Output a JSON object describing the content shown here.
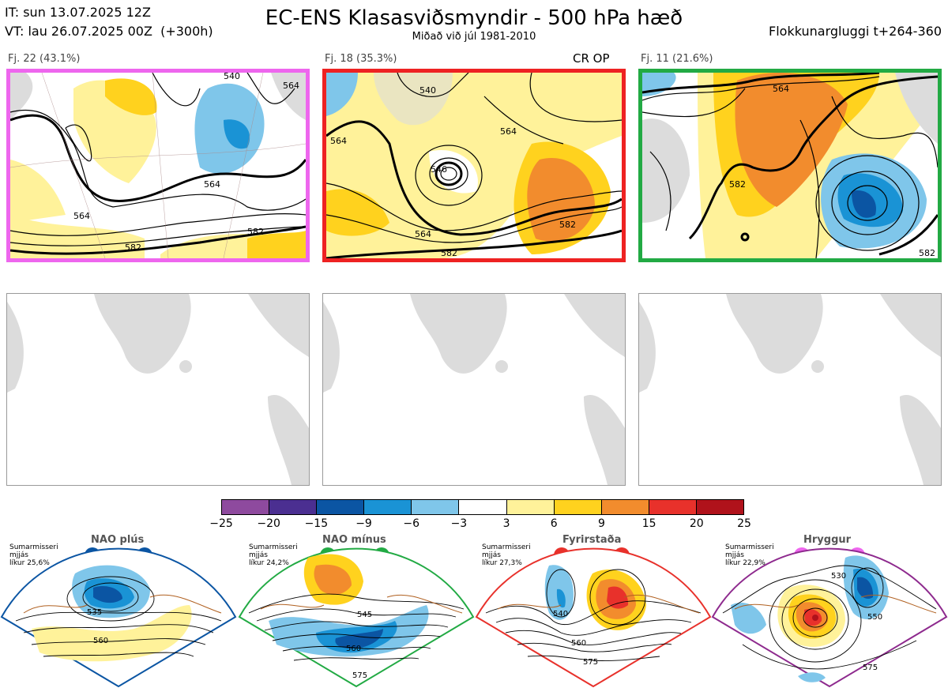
{
  "header": {
    "it": "IT: sun 13.07.2025 12Z",
    "vt": "VT: lau 26.07.2025 00Z  (+300h)",
    "title": "EC-ENS Klasasviðsmyndir - 500 hPa hæð",
    "subtitle": "Miðað við júl 1981-2010",
    "window": "Flokkunargluggi t+264-360"
  },
  "clusters": [
    {
      "label": "Fj. 22 (43.1%)",
      "border": "#ee66ee",
      "contours": [
        "540",
        "564",
        "564",
        "564",
        "582",
        "582"
      ]
    },
    {
      "label": "Fj. 18 (35.3%)",
      "border": "#ee2222",
      "extra": "CR OP",
      "contours": [
        "540",
        "564",
        "564",
        "546",
        "564",
        "582",
        "582"
      ]
    },
    {
      "label": "Fj. 11 (21.6%)",
      "border": "#22aa44",
      "contours": [
        "564",
        "582",
        "582"
      ]
    }
  ],
  "colorbar": {
    "ticks": [
      "−25",
      "−20",
      "−15",
      "−9",
      "−6",
      "−3",
      "3",
      "6",
      "9",
      "15",
      "20",
      "25"
    ],
    "colors": [
      "#8e4a9e",
      "#4b2f91",
      "#0b55a3",
      "#1a93d5",
      "#7fc6ea",
      "#ffffff",
      "#fff29a",
      "#ffd21e",
      "#f28c2d",
      "#e8312b",
      "#b0121b"
    ]
  },
  "regimes": [
    {
      "name": "NAO plús",
      "info": "Sumarmisseri\nmjjás\nlíkur 25,6%",
      "color": "#0b55a3",
      "dot": "#0b55a3",
      "contours": [
        "535",
        "560"
      ]
    },
    {
      "name": "NAO mínus",
      "info": "Sumarmisseri\nmjjás\nlíkur 24,2%",
      "color": "#22aa44",
      "dot": "#22aa44",
      "contours": [
        "545",
        "560",
        "575"
      ]
    },
    {
      "name": "Fyrirstaða",
      "info": "Sumarmisseri\nmjjás\nlíkur 27,3%",
      "color": "#e8312b",
      "dot": "#e8312b",
      "contours": [
        "540",
        "560",
        "575"
      ]
    },
    {
      "name": "Hryggur",
      "info": "Sumarmisseri\nmjjás\nlíkur 22,9%",
      "color": "#8e2a8e",
      "dot": "#ee66ee",
      "contours": [
        "530",
        "550",
        "575"
      ]
    }
  ]
}
